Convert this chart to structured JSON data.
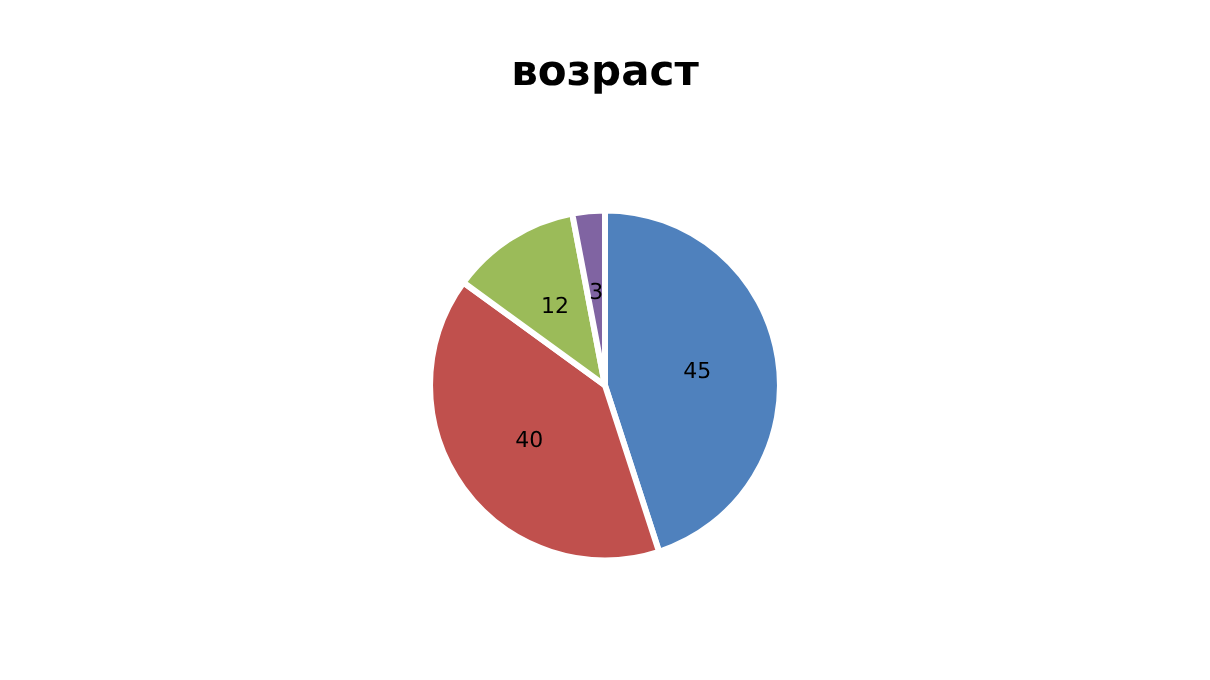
{
  "chart_data": {
    "type": "pie",
    "title": "возраст",
    "categories": [
      null,
      null,
      null,
      null
    ],
    "values": [
      45,
      40,
      12,
      3
    ],
    "colors": [
      "#4f81bd",
      "#c0504d",
      "#9bbb59",
      "#8064a2"
    ],
    "data_labels": true
  }
}
